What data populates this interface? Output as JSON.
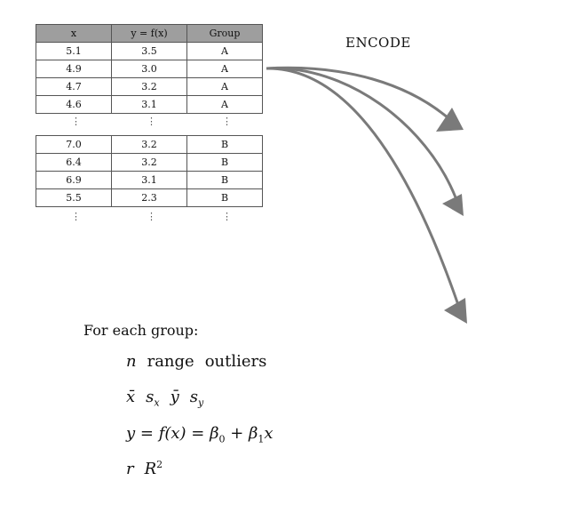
{
  "table": {
    "headers": [
      "x",
      "y = f(x)",
      "Group"
    ],
    "group_a_rows": [
      [
        "5.1",
        "3.5",
        "A"
      ],
      [
        "4.9",
        "3.0",
        "A"
      ],
      [
        "4.7",
        "3.2",
        "A"
      ],
      [
        "4.6",
        "3.1",
        "A"
      ]
    ],
    "group_b_rows": [
      [
        "7.0",
        "3.2",
        "B"
      ],
      [
        "6.4",
        "3.2",
        "B"
      ],
      [
        "6.9",
        "3.1",
        "B"
      ],
      [
        "5.5",
        "2.3",
        "B"
      ]
    ],
    "ellipsis": "⋮"
  },
  "encode_label": "ENCODE",
  "summary": {
    "heading": "For each group:",
    "line1": {
      "n": "n",
      "range": "range",
      "outliers": "outliers"
    },
    "line2": {
      "xbar": "x̄",
      "sx": "s",
      "sx_sub": "x",
      "ybar": "ȳ",
      "sy": "s",
      "sy_sub": "y"
    },
    "line3": {
      "lhs": "y = f(x) = β",
      "b0_sub": "0",
      "plus": " + β",
      "b1_sub": "1",
      "rhs": "x"
    },
    "line4": {
      "r": "r",
      "R": "R",
      "R_sup": "2"
    }
  },
  "colors": {
    "header_bg": "#9e9e9e",
    "arrow": "#7a7a7a",
    "border": "#555555"
  }
}
